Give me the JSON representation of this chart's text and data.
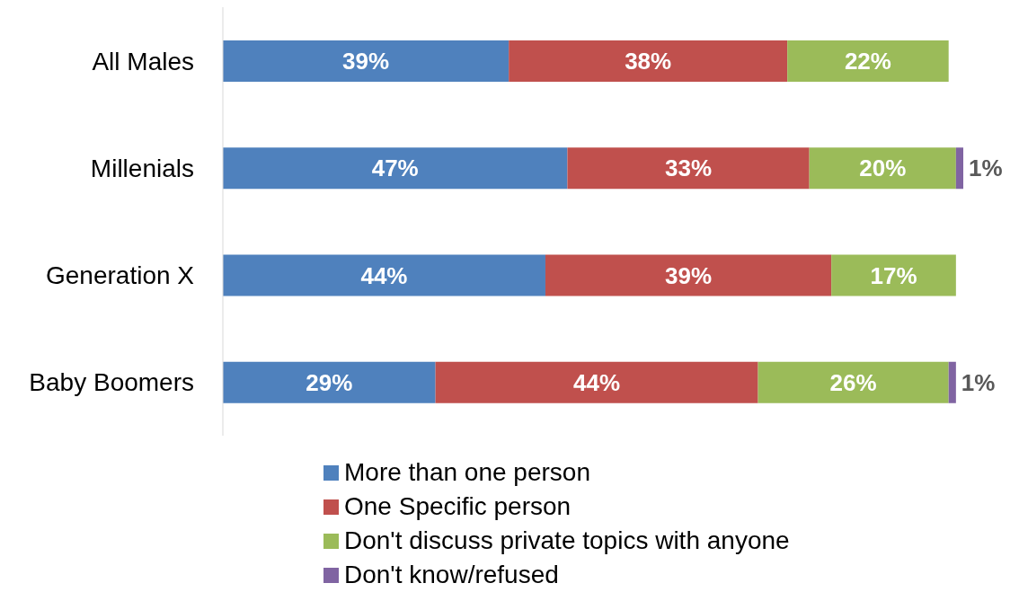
{
  "chart_data": {
    "type": "bar",
    "orientation": "horizontal",
    "stacked": true,
    "categories": [
      "All Males",
      "Millenials",
      "Generation X",
      "Baby Boomers"
    ],
    "tick_labels": "y",
    "legend": "bottom",
    "series": [
      {
        "name": "More than one person",
        "color": "#4f81bd",
        "values": [
          39,
          47,
          44,
          29
        ],
        "value_labels": [
          "39%",
          "47%",
          "44%",
          "29%"
        ]
      },
      {
        "name": "One Specific person",
        "color": "#c0504d",
        "values": [
          38,
          33,
          39,
          44
        ],
        "value_labels": [
          "38%",
          "33%",
          "39%",
          "44%"
        ]
      },
      {
        "name": "Don't discuss private topics with anyone",
        "color": "#9bbb59",
        "values": [
          22,
          20,
          17,
          26
        ],
        "value_labels": [
          "22%",
          "20%",
          "17%",
          "26%"
        ]
      },
      {
        "name": "Don't know/refused",
        "color": "#8064a2",
        "values": [
          null,
          1,
          null,
          1
        ],
        "value_labels": [
          null,
          "1%",
          null,
          "1%"
        ]
      }
    ]
  }
}
